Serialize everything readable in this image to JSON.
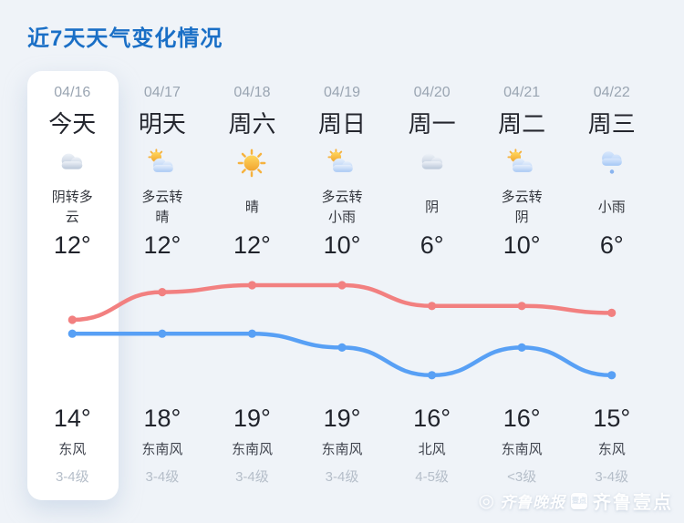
{
  "page": {
    "title": "近7天天气变化情况",
    "background_color": "#eff3f8",
    "accent_color": "#1a6fc6"
  },
  "columns": [
    {
      "date": "04/16",
      "day": "今天",
      "icon": "cloudy-icon",
      "desc": "阴转多云",
      "temp_top": "12°",
      "temp_bottom": "14°",
      "wind_dir": "东风",
      "wind_level": "3-4级",
      "highlight": true
    },
    {
      "date": "04/17",
      "day": "明天",
      "icon": "partly-cloudy-icon",
      "desc": "多云转晴",
      "temp_top": "12°",
      "temp_bottom": "18°",
      "wind_dir": "东南风",
      "wind_level": "3-4级",
      "highlight": false
    },
    {
      "date": "04/18",
      "day": "周六",
      "icon": "sunny-icon",
      "desc": "晴",
      "temp_top": "12°",
      "temp_bottom": "19°",
      "wind_dir": "东南风",
      "wind_level": "3-4级",
      "highlight": false
    },
    {
      "date": "04/19",
      "day": "周日",
      "icon": "partly-cloudy-icon",
      "desc": "多云转小雨",
      "temp_top": "10°",
      "temp_bottom": "19°",
      "wind_dir": "东南风",
      "wind_level": "3-4级",
      "highlight": false
    },
    {
      "date": "04/20",
      "day": "周一",
      "icon": "cloudy-icon",
      "desc": "阴",
      "temp_top": "6°",
      "temp_bottom": "16°",
      "wind_dir": "北风",
      "wind_level": "4-5级",
      "highlight": false
    },
    {
      "date": "04/21",
      "day": "周二",
      "icon": "partly-cloudy-icon",
      "desc": "多云转阴",
      "temp_top": "10°",
      "temp_bottom": "16°",
      "wind_dir": "东南风",
      "wind_level": "<3级",
      "highlight": false
    },
    {
      "date": "04/22",
      "day": "周三",
      "icon": "light-rain-icon",
      "desc": "小雨",
      "temp_top": "6°",
      "temp_bottom": "15°",
      "wind_dir": "东风",
      "wind_level": "3-4级",
      "highlight": false
    }
  ],
  "chart_data": {
    "type": "line",
    "categories": [
      "04/16",
      "04/17",
      "04/18",
      "04/19",
      "04/20",
      "04/21",
      "04/22"
    ],
    "series": [
      {
        "name": "红线(下排温度)",
        "color": "#f28080",
        "values": [
          14,
          18,
          19,
          19,
          16,
          16,
          15
        ]
      },
      {
        "name": "蓝线(上排温度)",
        "color": "#58a0f5",
        "values": [
          12,
          12,
          12,
          10,
          6,
          10,
          6
        ]
      }
    ],
    "unit": "°",
    "ylim": [
      6,
      19
    ],
    "grid": false,
    "legend": "none",
    "title": "",
    "xlabel": "",
    "ylabel": ""
  },
  "watermark": {
    "logo_glyph": "◎",
    "brand1": "齐鲁晚报",
    "badge": "壹点",
    "brand2": "齐鲁壹点"
  }
}
